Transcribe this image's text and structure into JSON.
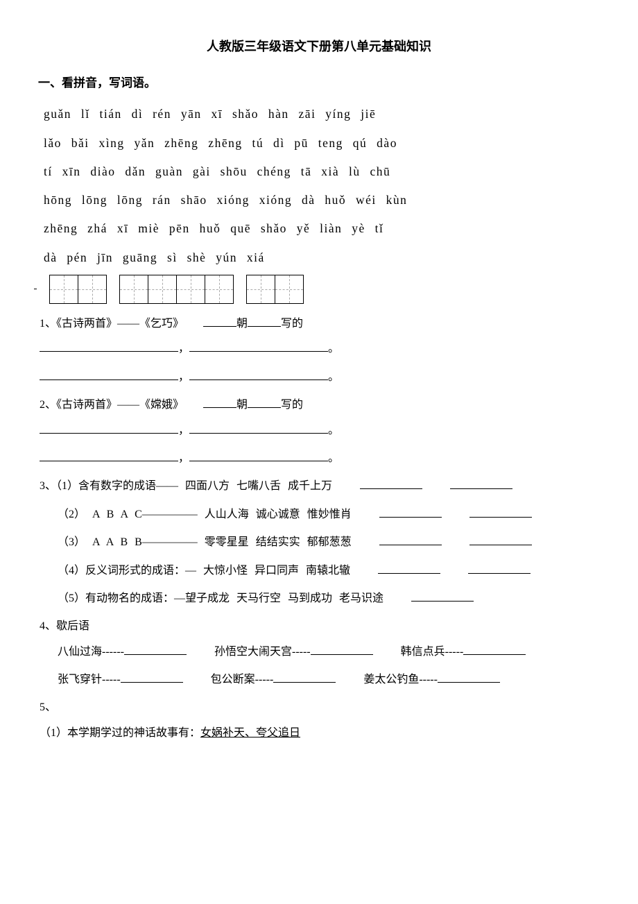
{
  "title": "人教版三年级语文下册第八单元基础知识",
  "section1_heading": "一、看拼音，写词语。",
  "pinyin": {
    "l1": "guǎn lǐ    tián dì    rén yān xī shǎo    hàn zāi   yíng jiē",
    "l2": "lǎo bǎi xìng   yǎn zhēng zhēng   tú dì    pū teng    qú dào",
    "l3": "tí xīn diào dǎn    guàn gài   shōu chéng tā xià     lù chū",
    "l4": "hōng lōng lōng  rán shāo   xióng xióng dà huǒ   wéi kùn",
    "l5": "zhēng zhá   xī miè    pēn huǒ    quē shǎo   yě liàn   yè tǐ",
    "l6": "dà pén   jīn guāng sì shè    yún xiá"
  },
  "q1": {
    "prefix": "1、《古诗两首》——《乞巧》",
    "dyn_label": "朝",
    "by_label": "写的"
  },
  "q2": {
    "prefix": "2、《古诗两首》——《嫦娥》",
    "dyn_label": "朝",
    "by_label": "写的"
  },
  "q3": {
    "r1": "3、（1）含有数字的成语——  四面八方    七嘴八舌    成千上万",
    "r2": "（2）    A B A C—————  人山人海    诚心诚意    惟妙惟肖",
    "r3": "（3）    A A B B—————  零零星星    结结实实    郁郁葱葱",
    "r4": "（4）反义词形式的成语：— 大惊小怪    异口同声    南辕北辙",
    "r5": "（5）有动物名的成语：—望子成龙    天马行空    马到成功    老马识途"
  },
  "q4_heading": "4、歇后语",
  "xhy": {
    "a1": "八仙过海------",
    "a2": "孙悟空大闹天宫-----",
    "a3": "韩信点兵-----",
    "b1": "张飞穿针-----",
    "b2": "包公断案-----",
    "b3": "姜太公钓鱼-----"
  },
  "q5_heading": "5、",
  "q5_1_prefix": "（1）本学期学过的神话故事有：",
  "q5_1_stories": "女娲补天、夸父追日",
  "punct": {
    "comma": "，",
    "period": "。"
  }
}
